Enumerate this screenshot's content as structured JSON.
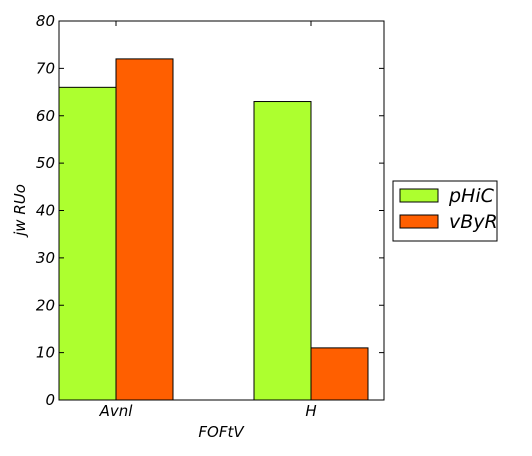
{
  "chart_data": {
    "type": "bar",
    "categories": [
      "Avnl",
      "H"
    ],
    "series": [
      {
        "name": "pHiC",
        "values": [
          66,
          63
        ],
        "color": "#adff2f"
      },
      {
        "name": "vByR",
        "values": [
          72,
          11
        ],
        "color": "#ff5f00"
      }
    ],
    "xlabel": "FOFtV",
    "ylabel": "jw RUo",
    "ylim": [
      0,
      80
    ],
    "yticks": [
      0,
      10,
      20,
      30,
      40,
      50,
      60,
      70,
      80
    ],
    "grid": false,
    "legend_position": "right-outside"
  }
}
